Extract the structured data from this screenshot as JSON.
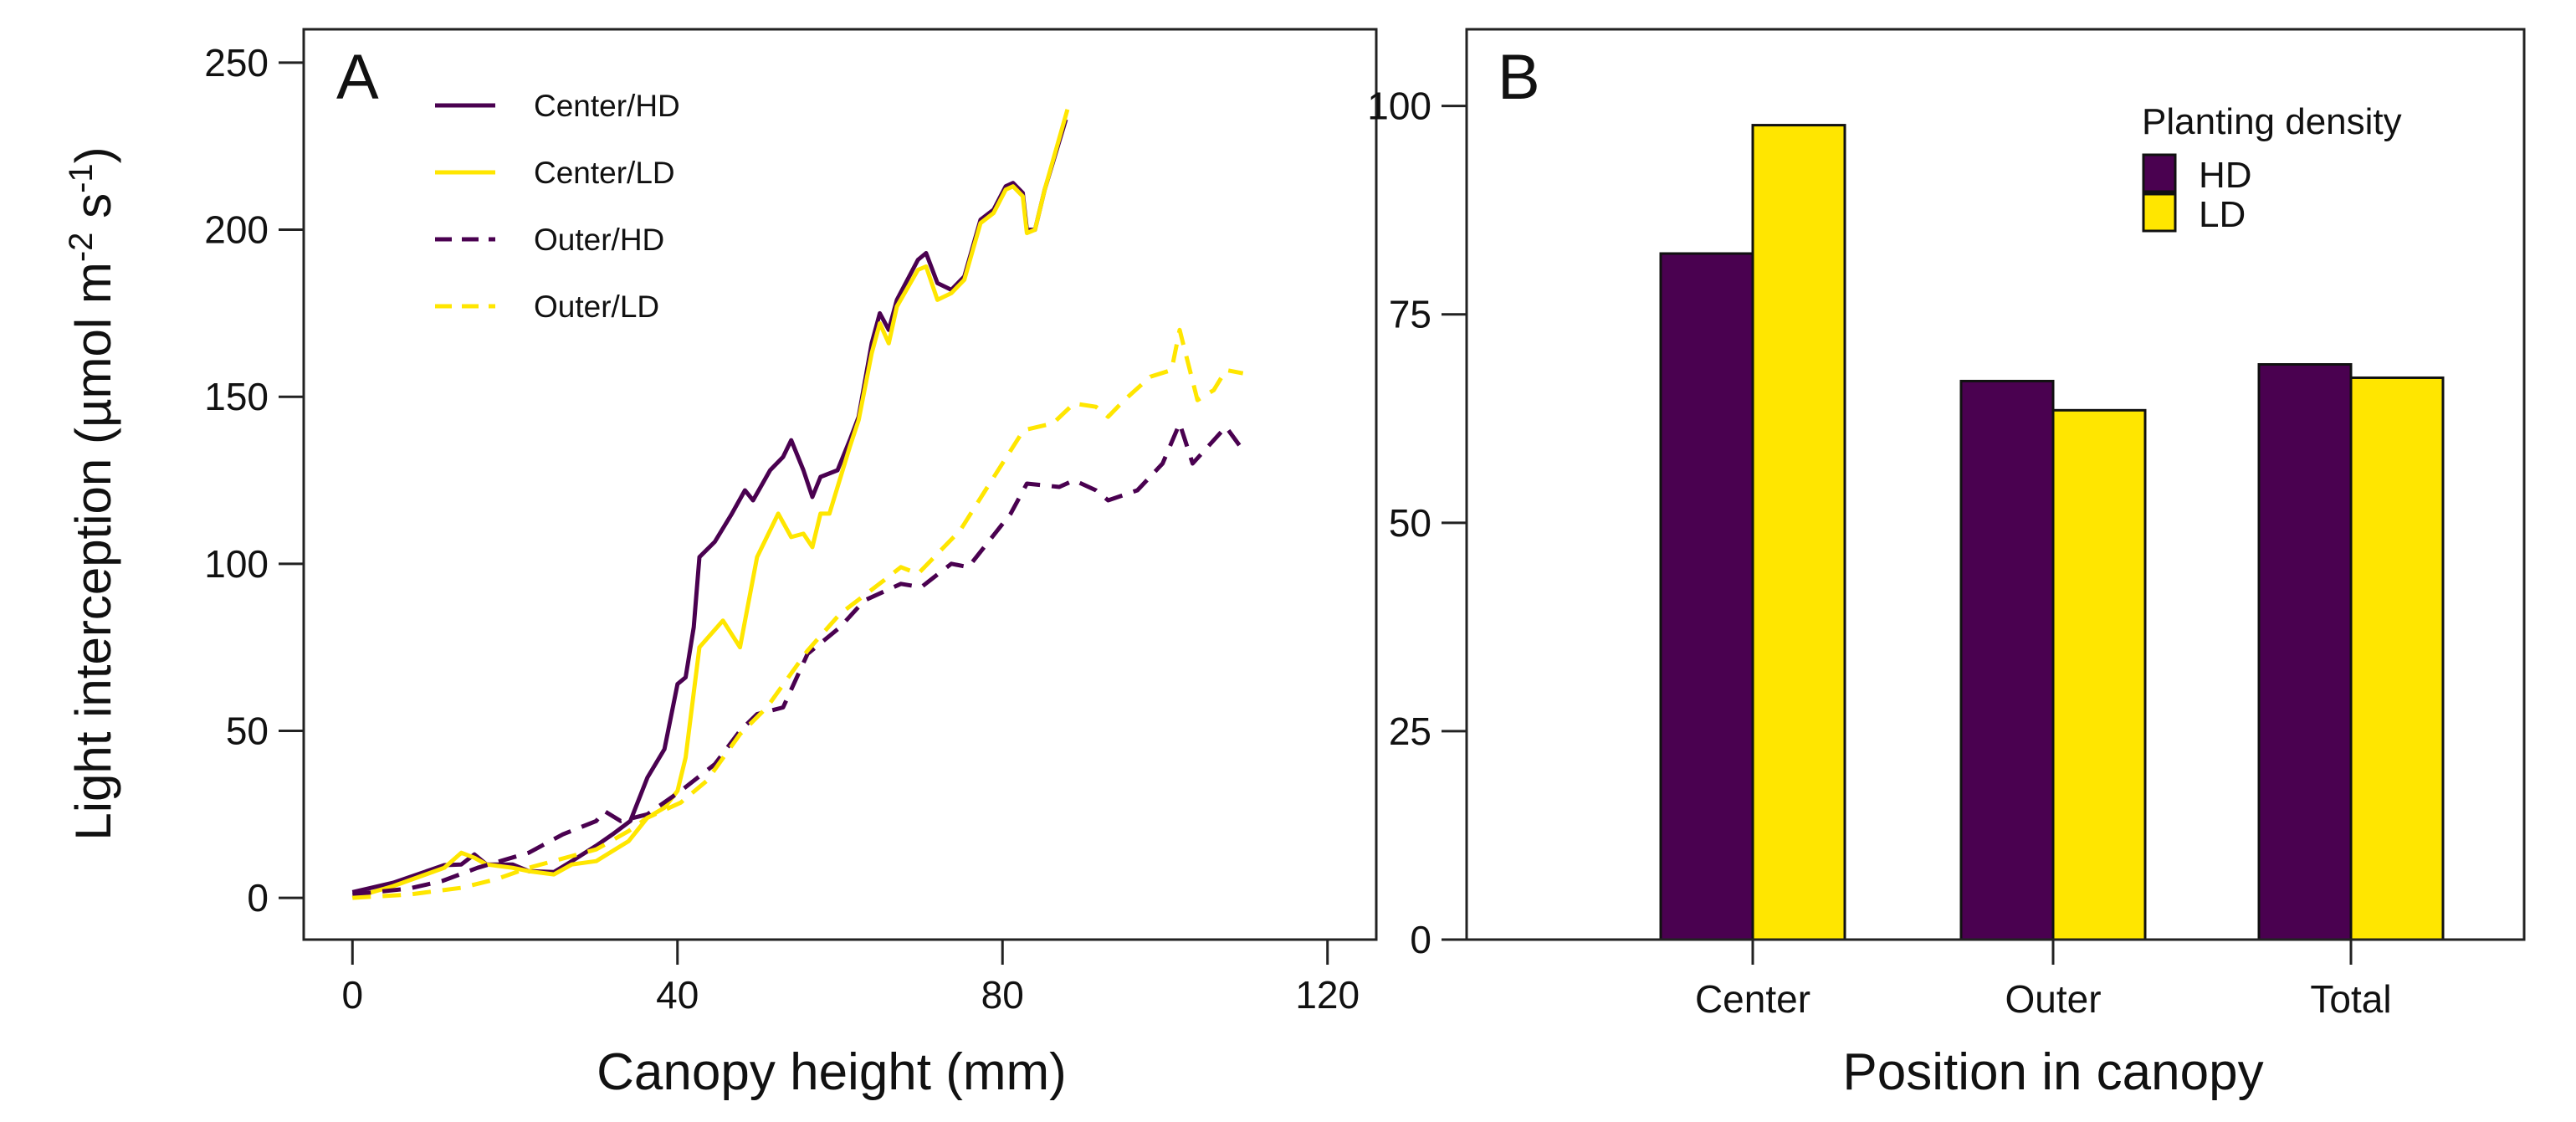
{
  "colors": {
    "hd": "#4A0150",
    "ld": "#FFE600",
    "axis": "#222222"
  },
  "chart_data": [
    {
      "type": "line",
      "panel_label": "A",
      "xlabel": "Canopy height (mm)",
      "ylabel": "Light interception (µmol m",
      "ylabel_sup1": "-2",
      "ylabel_mid": " s",
      "ylabel_sup2": "-1",
      "ylabel_end": ")",
      "xlim": [
        -6,
        126
      ],
      "ylim": [
        -12.5,
        260
      ],
      "xticks": [
        0,
        40,
        80,
        120
      ],
      "yticks": [
        0,
        50,
        100,
        150,
        200,
        250
      ],
      "xtick_labels": [
        "0",
        "40",
        "80",
        "120"
      ],
      "ytick_labels": [
        "0",
        "50",
        "100",
        "150",
        "200",
        "250"
      ],
      "legend_position": "top-left",
      "series": [
        {
          "name": "Center/HD",
          "color_key": "hd",
          "dash": false,
          "x": [
            0,
            5,
            11.3,
            13.4,
            15,
            16.5,
            19.7,
            21.7,
            24.8,
            27,
            30,
            32,
            34.2,
            36.3,
            38.4,
            40,
            41,
            42,
            42.7,
            44.6,
            46.7,
            48.3,
            49.3,
            51.4,
            53,
            54,
            55.5,
            56.6,
            57.6,
            59.7,
            61.2,
            62.3,
            63.9,
            64.9,
            66,
            67,
            69.6,
            70.6,
            72,
            73.7,
            75.3,
            77.3,
            78.9,
            80.4,
            81.3,
            82.5,
            83,
            84,
            85.2,
            87.8
          ],
          "y": [
            1.7,
            4.5,
            9.8,
            10,
            13,
            10,
            10,
            8,
            7.7,
            11,
            15.6,
            19,
            23,
            36,
            44.5,
            64,
            66,
            81,
            102,
            106.6,
            115,
            122,
            119,
            128,
            132,
            137,
            128,
            120,
            126,
            128,
            137,
            144,
            166,
            175,
            170,
            179,
            191,
            193,
            184,
            182,
            186,
            203,
            206,
            213,
            214,
            211,
            200,
            200,
            212,
            233
          ]
        },
        {
          "name": "Center/LD",
          "color_key": "ld",
          "dash": false,
          "x": [
            0,
            5,
            11.3,
            13.4,
            15,
            16.5,
            19.7,
            21.7,
            24.8,
            27,
            30,
            34,
            36.3,
            38.4,
            40,
            41,
            42.7,
            45.6,
            47.7,
            49.8,
            52.4,
            54,
            55.5,
            56.6,
            57.6,
            58.7,
            61.2,
            62.3,
            63.9,
            64.9,
            66,
            67,
            69.6,
            70.6,
            72,
            73.7,
            75.3,
            77.3,
            78.9,
            80.4,
            81.3,
            82.5,
            83,
            84,
            85.2,
            88
          ],
          "y": [
            0,
            3.5,
            9,
            13.5,
            12,
            10,
            9,
            8,
            7,
            10,
            11,
            17,
            24,
            27,
            32,
            42,
            75,
            83,
            75,
            102,
            115,
            108,
            109,
            105,
            115,
            115,
            135,
            143,
            163,
            172,
            166,
            177,
            188,
            189,
            179,
            181,
            185,
            202,
            205,
            212,
            213,
            210,
            199,
            200,
            212,
            236
          ]
        },
        {
          "name": "Outer/HD",
          "color_key": "hd",
          "dash": true,
          "x": [
            0,
            7,
            11,
            15.4,
            21.7,
            25.9,
            30,
            31,
            33,
            36.3,
            40.4,
            44.6,
            47.7,
            49.8,
            53,
            56,
            60,
            63,
            67.5,
            70,
            73.7,
            75.8,
            81,
            83,
            87,
            88.8,
            91.5,
            93,
            96.6,
            99.7,
            101.8,
            103.4,
            107.5,
            109.6
          ],
          "y": [
            1,
            2.8,
            5,
            9,
            13.5,
            19,
            23,
            26,
            23,
            25,
            32,
            40,
            50,
            55,
            57,
            73,
            81,
            89,
            94,
            93,
            100,
            99,
            115,
            124,
            123,
            125,
            122,
            119,
            122,
            130,
            142,
            130,
            141,
            134
          ]
        },
        {
          "name": "Outer/LD",
          "color_key": "ld",
          "dash": true,
          "x": [
            0,
            7,
            13.4,
            17.6,
            21.7,
            30,
            34,
            36.3,
            40.4,
            43.6,
            47.7,
            51,
            56,
            60,
            65.4,
            67.5,
            69.6,
            74.8,
            77.9,
            82.6,
            86.2,
            88.8,
            91.5,
            93,
            95,
            98.2,
            100.8,
            101.8,
            104,
            106,
            107.5,
            109.6
          ],
          "y": [
            0,
            1,
            3,
            5.5,
            9,
            14.5,
            20,
            24,
            28.5,
            35,
            49,
            57,
            74,
            85,
            95,
            99,
            97,
            110,
            122,
            140,
            142,
            148,
            147,
            144,
            149,
            156,
            158,
            170,
            149,
            152,
            158,
            157
          ]
        }
      ]
    },
    {
      "type": "bar",
      "panel_label": "B",
      "xlabel": "Position in canopy",
      "ylabel": "",
      "ylim": [
        0,
        109.2
      ],
      "yticks": [
        0,
        25,
        50,
        75,
        100
      ],
      "ytick_labels": [
        "0",
        "25",
        "50",
        "75",
        "100"
      ],
      "categories": [
        "Center",
        "Outer",
        "Total"
      ],
      "legend_title": "Planting density",
      "legend_position": "top-right",
      "series": [
        {
          "name": "HD",
          "color_key": "hd",
          "values": [
            82.3,
            67.0,
            69.0
          ]
        },
        {
          "name": "LD",
          "color_key": "ld",
          "values": [
            97.7,
            63.5,
            67.4
          ]
        }
      ]
    }
  ]
}
